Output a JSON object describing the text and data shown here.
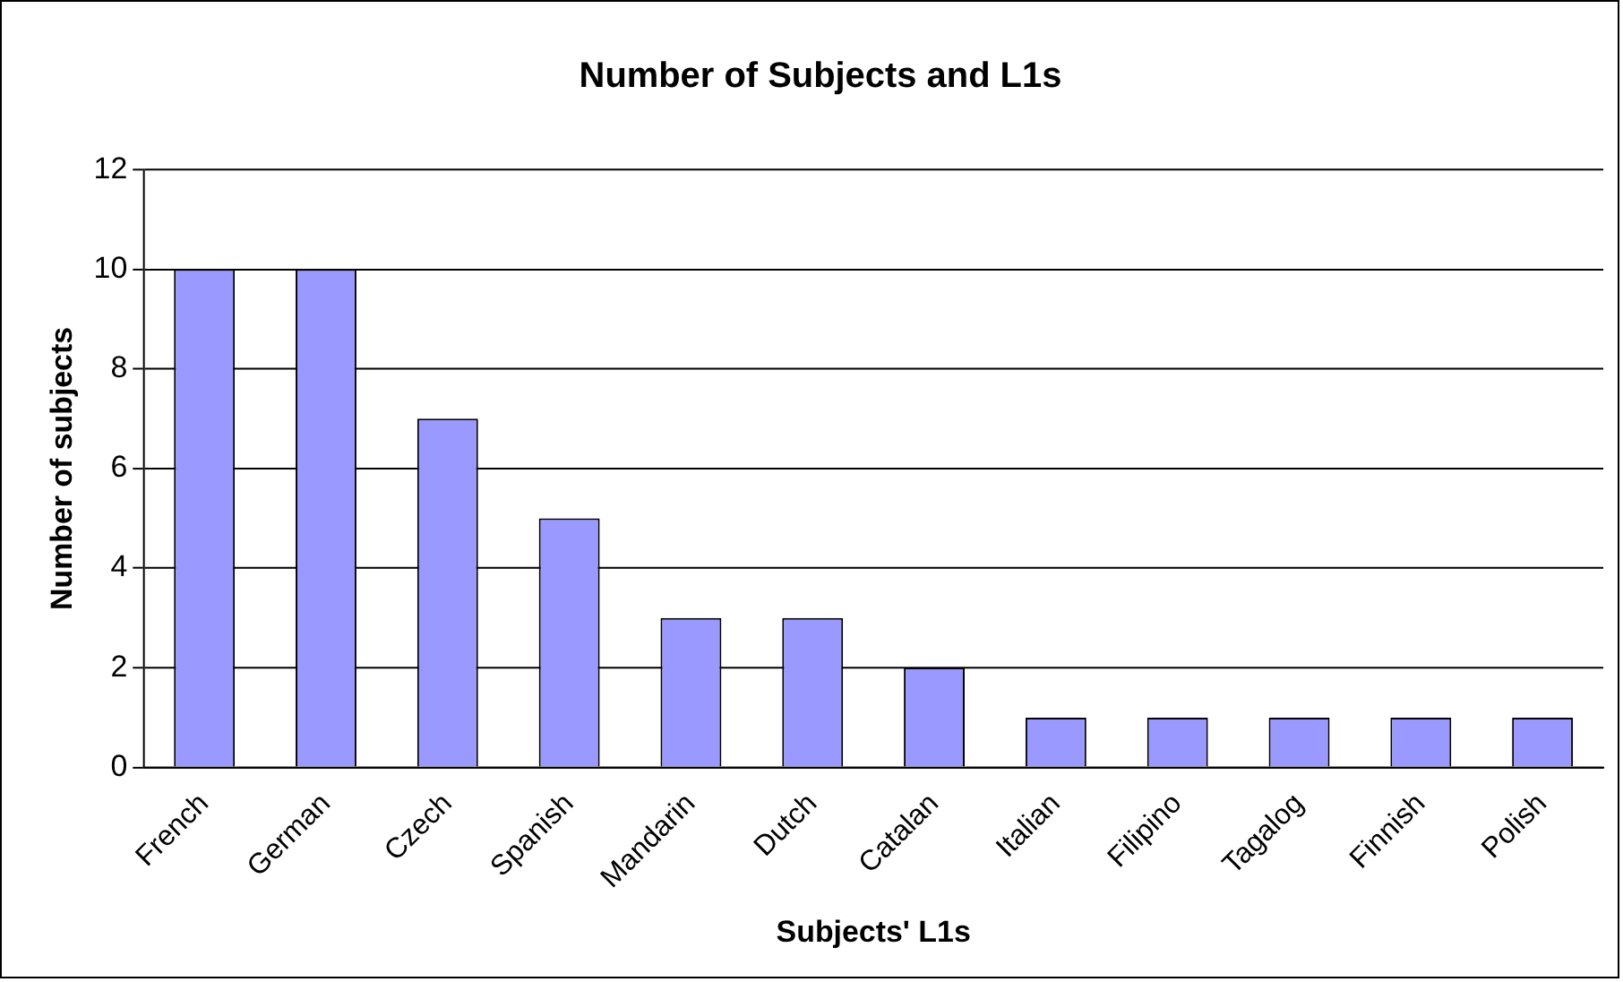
{
  "chart_data": {
    "type": "bar",
    "title": "Number of Subjects and L1s",
    "xlabel": "Subjects' L1s",
    "ylabel": "Number of subjects",
    "categories": [
      "French",
      "German",
      "Czech",
      "Spanish",
      "Mandarin",
      "Dutch",
      "Catalan",
      "Italian",
      "Filipino",
      "Tagalog",
      "Finnish",
      "Polish"
    ],
    "values": [
      10,
      10,
      7,
      5,
      3,
      3,
      2,
      1,
      1,
      1,
      1,
      1
    ],
    "color": "#9999ff",
    "ylim": [
      0,
      12
    ],
    "yticks": [
      0,
      2,
      4,
      6,
      8,
      10,
      12
    ],
    "grid": "y",
    "legend": false
  }
}
